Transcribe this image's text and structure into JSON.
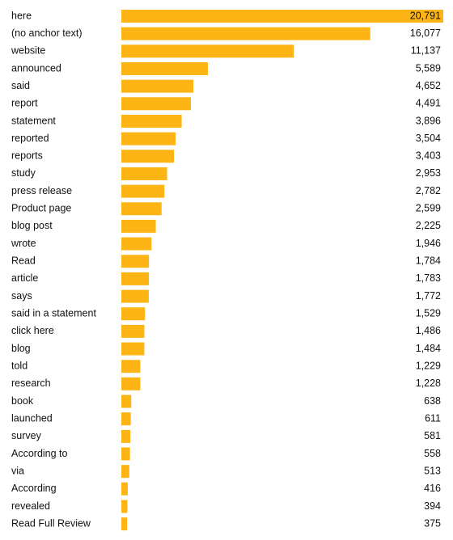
{
  "chart_data": {
    "type": "bar",
    "orientation": "horizontal",
    "color": "#fdb515",
    "categories": [
      "here",
      "(no anchor text)",
      "website",
      "announced",
      "said",
      "report",
      "statement",
      "reported",
      "reports",
      "study",
      "press release",
      "Product page",
      "blog post",
      "wrote",
      "Read",
      "article",
      "says",
      "said in a statement",
      "click here",
      "blog",
      "told",
      "research",
      "book",
      "launched",
      "survey",
      "According to",
      "via",
      "According",
      "revealed",
      "Read Full Review"
    ],
    "values": [
      20791,
      16077,
      11137,
      5589,
      4652,
      4491,
      3896,
      3504,
      3403,
      2953,
      2782,
      2599,
      2225,
      1946,
      1784,
      1783,
      1772,
      1529,
      1486,
      1484,
      1229,
      1228,
      638,
      611,
      581,
      558,
      513,
      416,
      394,
      375
    ],
    "value_labels": [
      "20,791",
      "16,077",
      "11,137",
      "5,589",
      "4,652",
      "4,491",
      "3,896",
      "3,504",
      "3,403",
      "2,953",
      "2,782",
      "2,599",
      "2,225",
      "1,946",
      "1,784",
      "1,783",
      "1,772",
      "1,529",
      "1,486",
      "1,484",
      "1,229",
      "1,228",
      "638",
      "611",
      "581",
      "558",
      "513",
      "416",
      "394",
      "375"
    ]
  }
}
